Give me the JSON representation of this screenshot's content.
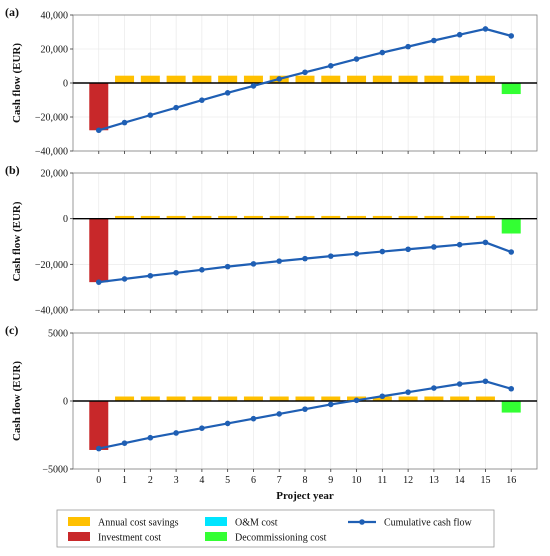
{
  "chart_data": [
    {
      "type": "bar",
      "panel_label": "(a)",
      "ylabel": "Cash flow (EUR)",
      "ylim": [
        -40000,
        40000
      ],
      "yticks": [
        -40000,
        -20000,
        0,
        20000,
        40000
      ],
      "ytick_labels": [
        "−40,000",
        "−20,000",
        "0",
        "20,000",
        "40,000"
      ],
      "x": [
        0,
        1,
        2,
        3,
        4,
        5,
        6,
        7,
        8,
        9,
        10,
        11,
        12,
        13,
        14,
        15,
        16
      ],
      "series": [
        {
          "name": "Annual cost savings",
          "values": [
            0,
            4300,
            4300,
            4300,
            4300,
            4300,
            4300,
            4300,
            4300,
            4300,
            4300,
            4300,
            4300,
            4300,
            4300,
            4300,
            0
          ]
        },
        {
          "name": "Investment cost",
          "values": [
            -27800,
            0,
            0,
            0,
            0,
            0,
            0,
            0,
            0,
            0,
            0,
            0,
            0,
            0,
            0,
            0,
            0
          ]
        },
        {
          "name": "O&M cost",
          "values": [
            0,
            0,
            0,
            0,
            0,
            0,
            0,
            0,
            0,
            0,
            0,
            0,
            0,
            0,
            0,
            0,
            0
          ]
        },
        {
          "name": "Decommissioning cost",
          "values": [
            0,
            0,
            0,
            0,
            0,
            0,
            0,
            0,
            0,
            0,
            0,
            0,
            0,
            0,
            0,
            0,
            -6500
          ]
        },
        {
          "name": "Cumulative cash flow",
          "values": [
            -27800,
            -23300,
            -18900,
            -14500,
            -10100,
            -5800,
            -1700,
            2400,
            6300,
            10100,
            14100,
            17900,
            21400,
            25000,
            28400,
            31800,
            27700
          ]
        }
      ]
    },
    {
      "type": "bar",
      "panel_label": "(b)",
      "ylabel": "Cash flow (EUR)",
      "ylim": [
        -40000,
        20000
      ],
      "yticks": [
        -40000,
        -20000,
        0,
        20000
      ],
      "ytick_labels": [
        "−40,000",
        "−20,000",
        "0",
        "20,000"
      ],
      "x": [
        0,
        1,
        2,
        3,
        4,
        5,
        6,
        7,
        8,
        9,
        10,
        11,
        12,
        13,
        14,
        15,
        16
      ],
      "series": [
        {
          "name": "Annual cost savings",
          "values": [
            0,
            1200,
            1200,
            1200,
            1200,
            1200,
            1200,
            1200,
            1200,
            1200,
            1200,
            1200,
            1200,
            1200,
            1200,
            1200,
            0
          ]
        },
        {
          "name": "Investment cost",
          "values": [
            -27800,
            0,
            0,
            0,
            0,
            0,
            0,
            0,
            0,
            0,
            0,
            0,
            0,
            0,
            0,
            0,
            0
          ]
        },
        {
          "name": "O&M cost",
          "values": [
            0,
            0,
            0,
            0,
            0,
            0,
            0,
            0,
            0,
            0,
            0,
            0,
            0,
            0,
            0,
            0,
            0
          ]
        },
        {
          "name": "Decommissioning cost",
          "values": [
            0,
            0,
            0,
            0,
            0,
            0,
            0,
            0,
            0,
            0,
            0,
            0,
            0,
            0,
            0,
            0,
            -6500
          ]
        },
        {
          "name": "Cumulative cash flow",
          "values": [
            -27800,
            -26400,
            -25000,
            -23700,
            -22400,
            -21000,
            -19800,
            -18600,
            -17500,
            -16400,
            -15400,
            -14400,
            -13400,
            -12400,
            -11400,
            -10400,
            -14600
          ]
        }
      ]
    },
    {
      "type": "bar",
      "panel_label": "(c)",
      "ylabel": "Cash flow (EUR)",
      "ylim": [
        -5000,
        5000
      ],
      "yticks": [
        -5000,
        0,
        5000
      ],
      "ytick_labels": [
        "−5000",
        "0",
        "5000"
      ],
      "xlabel": "Project year",
      "xtick_labels": [
        "0",
        "1",
        "2",
        "3",
        "4",
        "5",
        "6",
        "7",
        "8",
        "9",
        "10",
        "11",
        "12",
        "13",
        "14",
        "15",
        "16"
      ],
      "x": [
        0,
        1,
        2,
        3,
        4,
        5,
        6,
        7,
        8,
        9,
        10,
        11,
        12,
        13,
        14,
        15,
        16
      ],
      "series": [
        {
          "name": "Annual cost savings",
          "values": [
            0,
            330,
            330,
            330,
            330,
            330,
            330,
            330,
            330,
            330,
            330,
            330,
            330,
            330,
            330,
            330,
            0
          ]
        },
        {
          "name": "Investment cost",
          "values": [
            -3600,
            0,
            0,
            0,
            0,
            0,
            0,
            0,
            0,
            0,
            0,
            0,
            0,
            0,
            0,
            0,
            0
          ]
        },
        {
          "name": "O&M cost",
          "values": [
            0,
            0,
            0,
            0,
            0,
            0,
            0,
            0,
            0,
            0,
            0,
            0,
            0,
            0,
            0,
            0,
            0
          ]
        },
        {
          "name": "Decommissioning cost",
          "values": [
            0,
            0,
            0,
            0,
            0,
            0,
            0,
            0,
            0,
            0,
            0,
            0,
            0,
            0,
            0,
            0,
            -850
          ]
        },
        {
          "name": "Cumulative cash flow",
          "values": [
            -3500,
            -3100,
            -2700,
            -2350,
            -2000,
            -1650,
            -1300,
            -950,
            -600,
            -250,
            50,
            350,
            650,
            950,
            1250,
            1450,
            900
          ]
        }
      ]
    }
  ],
  "legend": {
    "placement": "bottom",
    "items": [
      {
        "label": "Annual cost savings",
        "kind": "bar",
        "color": "#FFC000"
      },
      {
        "label": "O&M cost",
        "kind": "bar",
        "color": "#00E5FF"
      },
      {
        "label": "Cumulative cash flow",
        "kind": "line",
        "color": "#1F5FB4"
      },
      {
        "label": "Investment cost",
        "kind": "bar",
        "color": "#C8282A"
      },
      {
        "label": "Decommissioning cost",
        "kind": "bar",
        "color": "#33FF33"
      }
    ]
  },
  "colors": {
    "savings": "#FFC000",
    "investment": "#C8282A",
    "om": "#00E5FF",
    "decommissioning": "#33FF33",
    "cumulative": "#1F5FB4",
    "grid": "#e6e6e6",
    "axis": "#7f7f7f"
  }
}
